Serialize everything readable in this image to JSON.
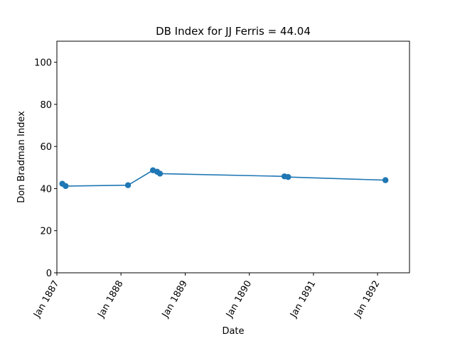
{
  "chart_data": {
    "type": "line",
    "title": "DB Index for JJ Ferris = 44.04",
    "xlabel": "Date",
    "ylabel": "Don Bradman Index",
    "ylim": [
      0,
      110
    ],
    "xlim": [
      "1887-01-01",
      "1892-07-01"
    ],
    "yticks": [
      0,
      20,
      40,
      60,
      80,
      100
    ],
    "xticks": [
      {
        "date": "1887-01-01",
        "label": "Jan 1887"
      },
      {
        "date": "1888-01-01",
        "label": "Jan 1888"
      },
      {
        "date": "1889-01-01",
        "label": "Jan 1889"
      },
      {
        "date": "1890-01-01",
        "label": "Jan 1890"
      },
      {
        "date": "1891-01-01",
        "label": "Jan 1891"
      },
      {
        "date": "1892-01-01",
        "label": "Jan 1892"
      }
    ],
    "grid": false,
    "colors": {
      "series": "#1f77b4"
    },
    "series": [
      {
        "markers": true,
        "points": [
          {
            "x": "1887-02-01",
            "y": 42.3
          },
          {
            "x": "1887-02-20",
            "y": 41.2
          },
          {
            "x": "1888-02-10",
            "y": 41.6
          },
          {
            "x": "1888-07-01",
            "y": 48.7
          },
          {
            "x": "1888-07-25",
            "y": 48.0
          },
          {
            "x": "1888-08-10",
            "y": 47.1
          },
          {
            "x": "1890-07-20",
            "y": 45.8
          },
          {
            "x": "1890-08-10",
            "y": 45.5
          },
          {
            "x": "1892-02-15",
            "y": 44.0
          }
        ]
      }
    ]
  }
}
